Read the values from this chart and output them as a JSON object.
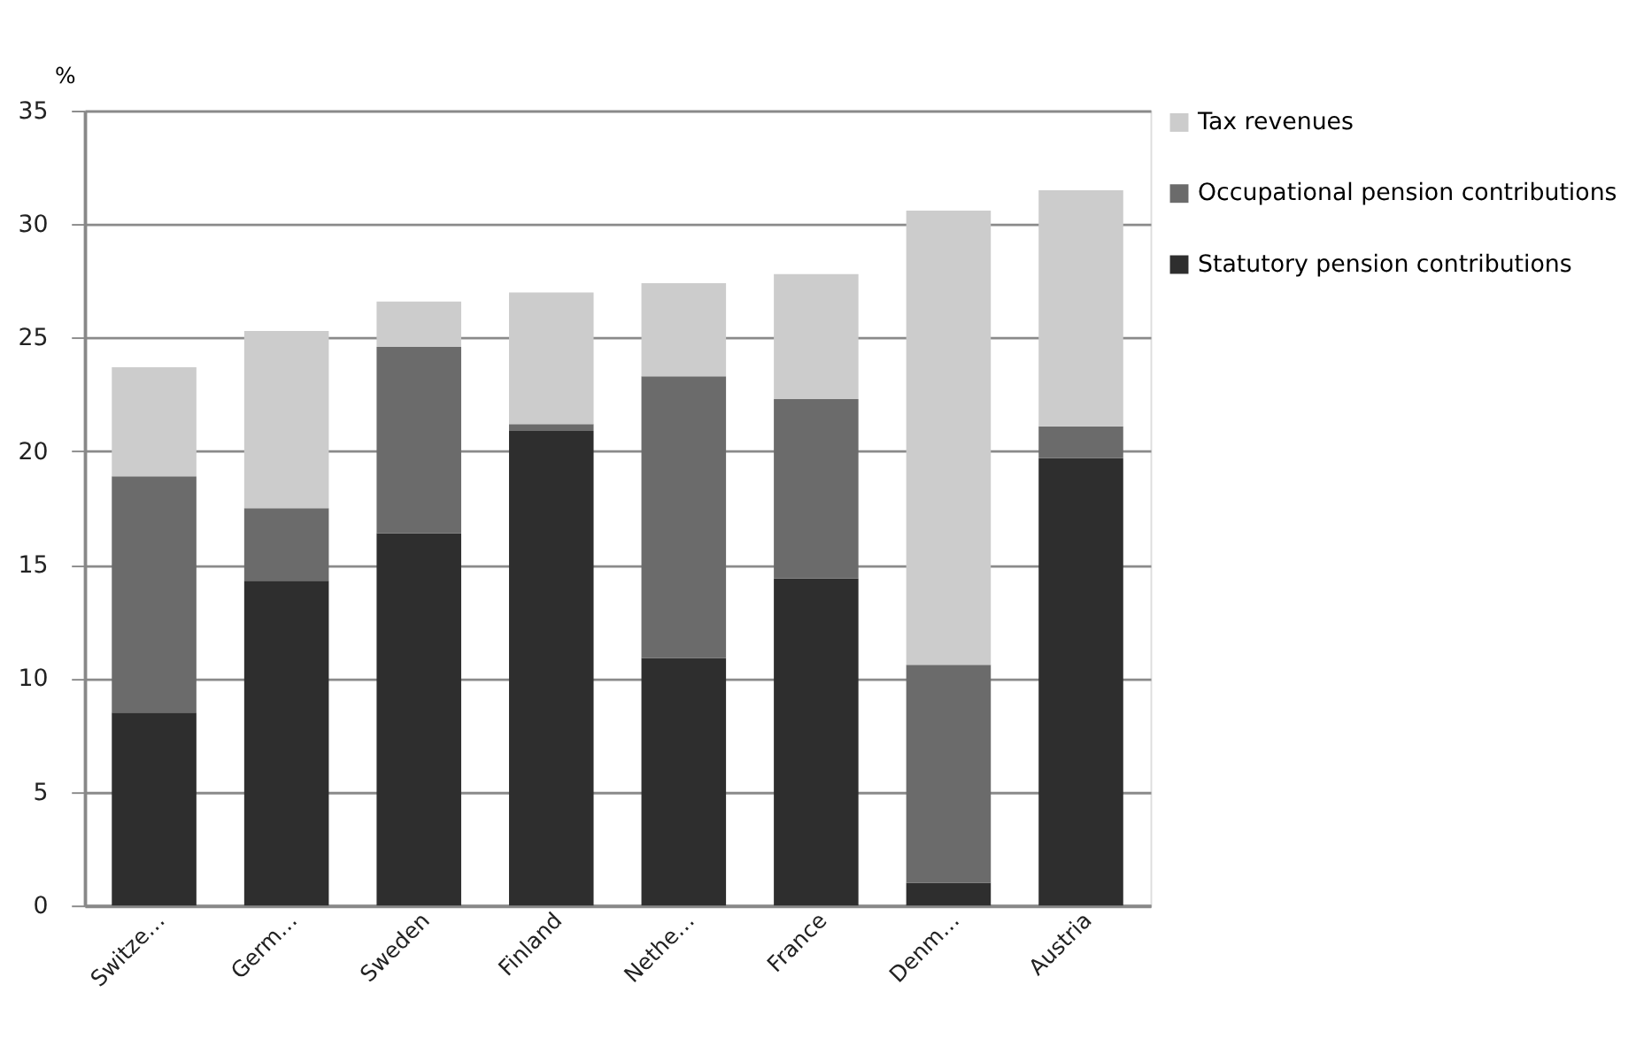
{
  "chart_data": {
    "type": "bar",
    "stacked": true,
    "ylabel": "%",
    "categories": [
      "Switze…",
      "Germ…",
      "Sweden",
      "Finland",
      "Nethe…",
      "France",
      "Denm…",
      "Austria"
    ],
    "series": [
      {
        "name": "Statutory pension contributions",
        "color": "#2e2e2e",
        "values": [
          8.5,
          14.3,
          16.4,
          20.9,
          10.9,
          14.4,
          1.0,
          19.7
        ]
      },
      {
        "name": "Occupational pension contributions",
        "color": "#6b6b6b",
        "values": [
          10.4,
          3.2,
          8.2,
          0.3,
          12.4,
          7.9,
          9.6,
          1.4
        ]
      },
      {
        "name": "Tax revenues",
        "color": "#cccccc",
        "values": [
          4.8,
          7.8,
          2.0,
          5.8,
          4.1,
          5.5,
          20.0,
          10.4
        ]
      }
    ],
    "ylim": [
      0,
      35
    ],
    "yticks": [
      0,
      5,
      10,
      15,
      20,
      25,
      30,
      35
    ],
    "grid": "y",
    "legend": "right"
  }
}
